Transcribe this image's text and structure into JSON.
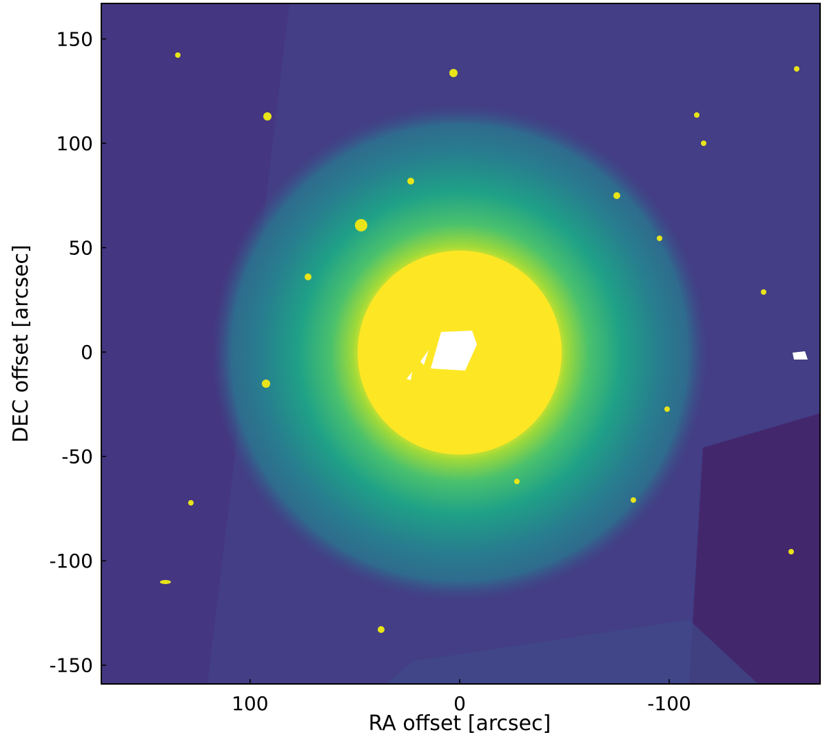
{
  "chart_data": {
    "type": "image",
    "xlabel": "RA offset [arcsec]",
    "ylabel": "DEC offset [arcsec]",
    "xlim": [
      171,
      -172
    ],
    "ylim": [
      -159,
      167
    ],
    "xticks": [
      100,
      0,
      -100
    ],
    "yticks": [
      150,
      100,
      50,
      0,
      -50,
      -100,
      -150
    ]
  }
}
